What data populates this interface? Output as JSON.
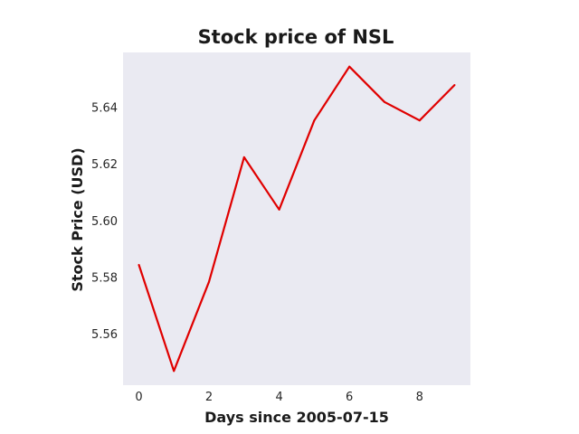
{
  "chart_data": {
    "type": "line",
    "title": "Stock price of NSL",
    "xlabel": "Days since 2005-07-15",
    "ylabel": "Stock Price (USD)",
    "xlim": [
      -0.45,
      9.45
    ],
    "ylim": [
      5.542,
      5.6595
    ],
    "xticks": [
      0,
      2,
      4,
      6,
      8
    ],
    "xtick_labels": [
      "0",
      "2",
      "4",
      "6",
      "8"
    ],
    "yticks": [
      5.56,
      5.58,
      5.6,
      5.62,
      5.64
    ],
    "ytick_labels": [
      "5.56",
      "5.58",
      "5.60",
      "5.62",
      "5.64"
    ],
    "grid": false,
    "background": "#eaeaf2",
    "series": [
      {
        "color": "#e00000",
        "x": [
          0,
          1,
          2,
          3,
          4,
          5,
          6,
          7,
          8,
          9
        ],
        "values": [
          5.5845,
          5.547,
          5.5785,
          5.6225,
          5.604,
          5.6355,
          5.6545,
          5.642,
          5.6355,
          5.648
        ]
      }
    ]
  }
}
